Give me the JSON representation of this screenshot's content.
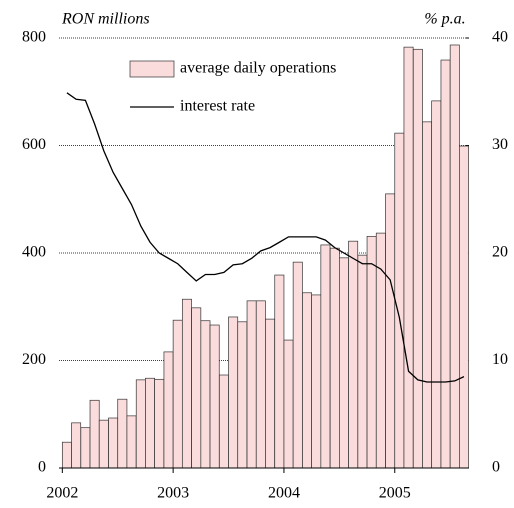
{
  "chart_data": {
    "type": "bar",
    "y_label": "RON millions",
    "y2_label": "% p.a.",
    "x": [
      2002,
      2002.083,
      2002.167,
      2002.25,
      2002.333,
      2002.417,
      2002.5,
      2002.583,
      2002.667,
      2002.75,
      2002.833,
      2002.917,
      2003,
      2003.083,
      2003.167,
      2003.25,
      2003.333,
      2003.417,
      2003.5,
      2003.583,
      2003.667,
      2003.75,
      2003.833,
      2003.917,
      2004,
      2004.083,
      2004.167,
      2004.25,
      2004.333,
      2004.417,
      2004.5,
      2004.583,
      2004.667,
      2004.75,
      2004.833,
      2004.917,
      2005,
      2005.083,
      2005.167,
      2005.25,
      2005.333,
      2005.417,
      2005.5,
      2005.583
    ],
    "series": [
      {
        "name": "average daily operations",
        "type": "bar",
        "color": "#fadcdc",
        "values": [
          48,
          84,
          75,
          126,
          89,
          93,
          128,
          97,
          164,
          167,
          165,
          216,
          275,
          314,
          298,
          274,
          266,
          173,
          281,
          272,
          311,
          311,
          277,
          359,
          238,
          383,
          326,
          322,
          415,
          409,
          391,
          422,
          396,
          431,
          437,
          510,
          623,
          783,
          779,
          644,
          683,
          759,
          787,
          599
        ]
      },
      {
        "name": "interest rate",
        "type": "line",
        "axis": "y2",
        "color": "#000000",
        "values": [
          34.9,
          34.3,
          34.2,
          32,
          29.5,
          27.5,
          26,
          24.5,
          22.5,
          21,
          20,
          19.5,
          19,
          18.2,
          17.4,
          18,
          18,
          18.2,
          18.9,
          19,
          19.5,
          20.2,
          20.5,
          21,
          21.5,
          21.5,
          21.5,
          21.5,
          21.2,
          20.5,
          20,
          19.5,
          19,
          19,
          18.5,
          17.5,
          14,
          9,
          8.2,
          8,
          8,
          8,
          8.1,
          8.5
        ]
      }
    ],
    "xlim": [
      2001.97,
      2005.67
    ],
    "xticks": [
      2002,
      2003,
      2004,
      2005
    ],
    "ylim": [
      0,
      800
    ],
    "yticks": [
      0,
      200,
      400,
      600,
      800
    ],
    "y2lim": [
      0,
      40
    ],
    "y2ticks": [
      0,
      10,
      20,
      30,
      40
    ],
    "grid": true
  }
}
